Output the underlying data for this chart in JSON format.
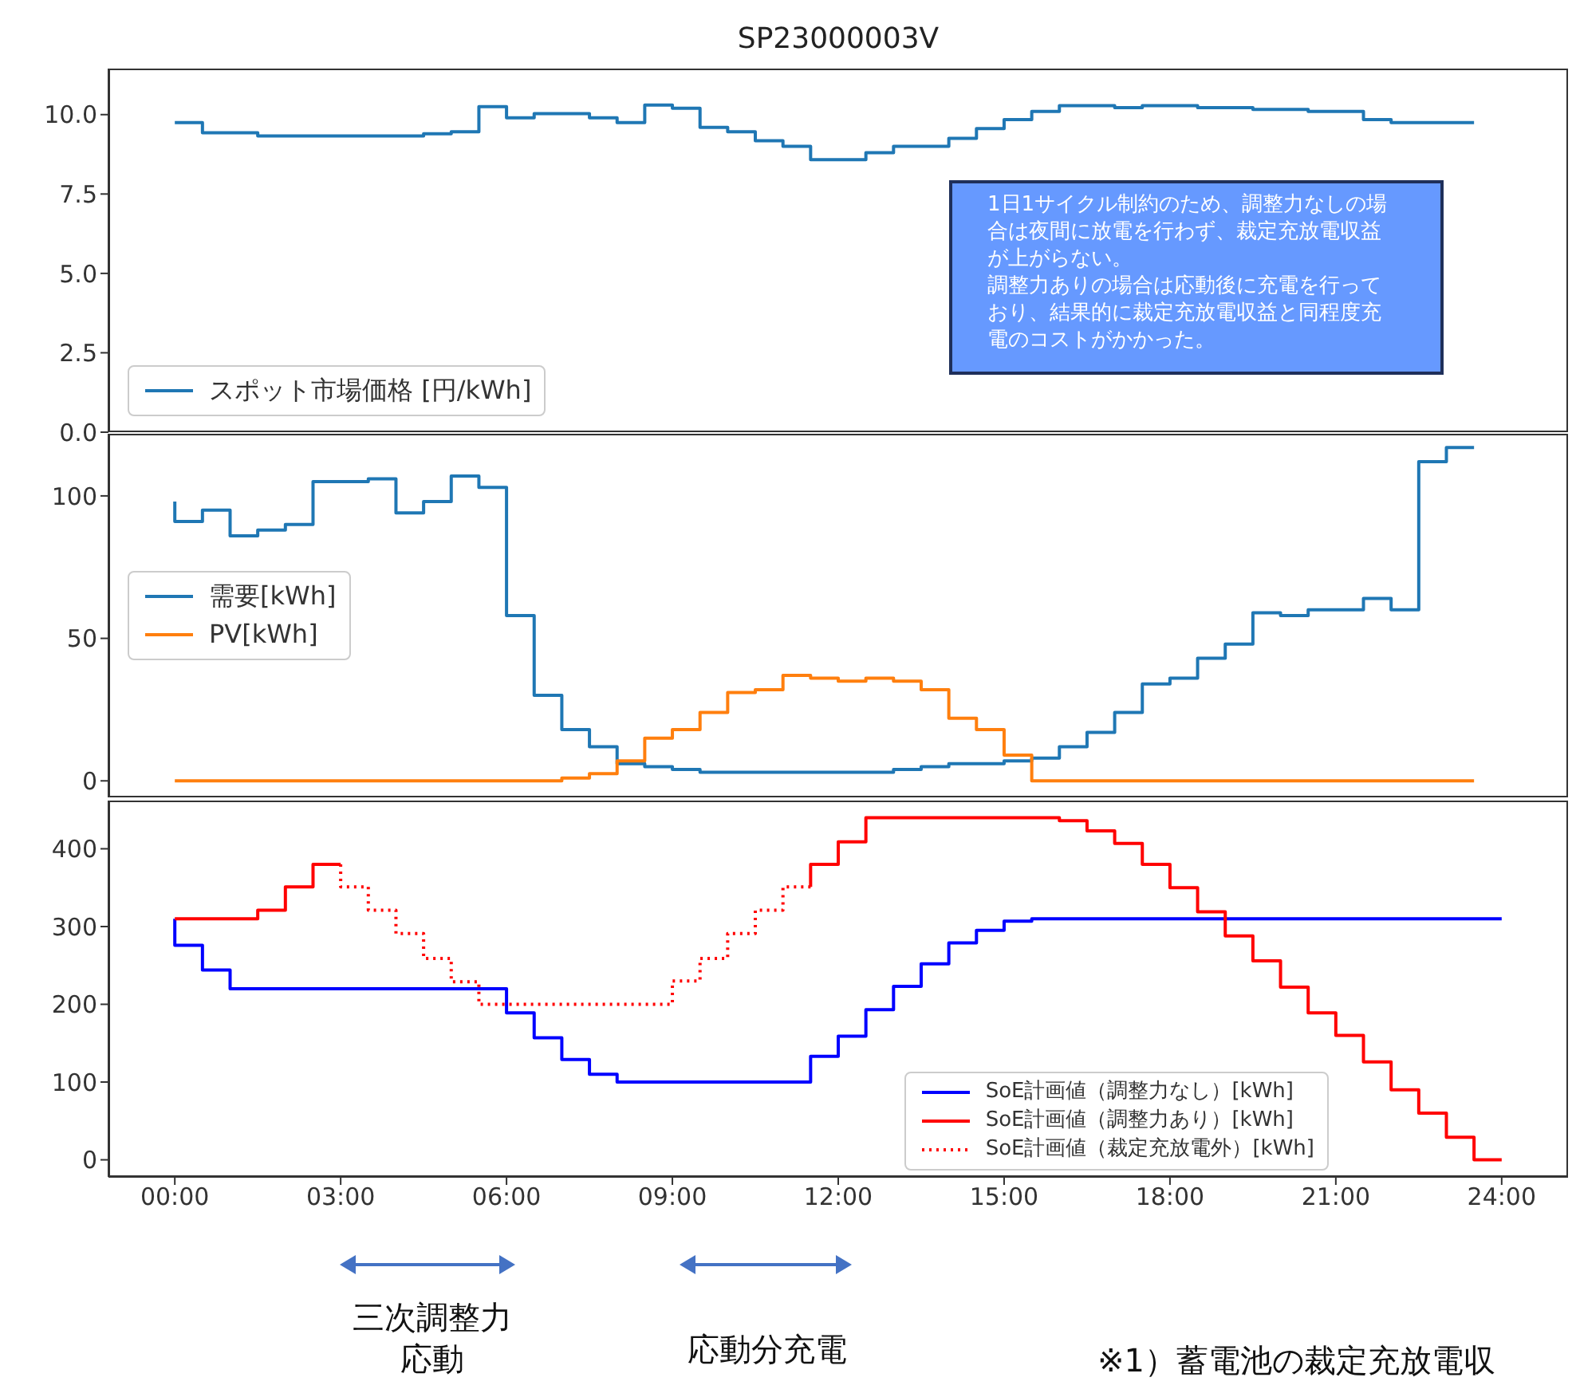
{
  "chart_data": [
    {
      "type": "step",
      "title": "SP23000003V",
      "legend": "lower left",
      "tick_labels": "y",
      "x": [
        0,
        0.5,
        1,
        1.5,
        2,
        2.5,
        3,
        3.5,
        4,
        4.5,
        5,
        5.5,
        6,
        6.5,
        7,
        7.5,
        8,
        8.5,
        9,
        9.5,
        10,
        10.5,
        11,
        11.5,
        12,
        12.5,
        13,
        13.5,
        14,
        14.5,
        15,
        15.5,
        16,
        16.5,
        17,
        17.5,
        18,
        18.5,
        19,
        19.5,
        20,
        20.5,
        21,
        21.5,
        22,
        22.5,
        23,
        23.5
      ],
      "xlim": [
        -1.2,
        25.2
      ],
      "ylim": [
        0,
        11.45
      ],
      "yticks": [
        {
          "value": 0,
          "label": "0.0"
        },
        {
          "value": 2.5,
          "label": "2.5"
        },
        {
          "value": 5,
          "label": "5.0"
        },
        {
          "value": 7.5,
          "label": "7.5"
        },
        {
          "value": 10,
          "label": "10.0"
        }
      ],
      "series": [
        {
          "name": "スポット市場価格 [円/kWh]",
          "color": "#1f77b4",
          "values": [
            9.75,
            9.75,
            9.43,
            9.43,
            9.33,
            9.33,
            9.33,
            9.33,
            9.33,
            9.33,
            9.4,
            9.46,
            10.25,
            9.9,
            10.03,
            10.03,
            9.9,
            9.75,
            10.3,
            10.2,
            9.6,
            9.46,
            9.18,
            9.0,
            8.58,
            8.58,
            8.8,
            9.0,
            9.0,
            9.25,
            9.56,
            9.84,
            10.1,
            10.28,
            10.28,
            10.22,
            10.28,
            10.28,
            10.22,
            10.22,
            10.16,
            10.16,
            10.1,
            10.1,
            9.84,
            9.75,
            9.75,
            9.75
          ]
        }
      ],
      "annotations": [
        "1日1サイクル制約のため、調整力なしの場合は夜間に放電を行わず、裁定充放電収益が上がらない。",
        "調整力ありの場合は応動後に充電を行っており、結果的に裁定充放電収益と同程度充電のコストがかかった。"
      ]
    },
    {
      "type": "step",
      "legend": "center left",
      "tick_labels": "y",
      "x": [
        0,
        0.5,
        1,
        1.5,
        2,
        2.5,
        3,
        3.5,
        4,
        4.5,
        5,
        5.5,
        6,
        6.5,
        7,
        7.5,
        8,
        8.5,
        9,
        9.5,
        10,
        10.5,
        11,
        11.5,
        12,
        12.5,
        13,
        13.5,
        14,
        14.5,
        15,
        15.5,
        16,
        16.5,
        17,
        17.5,
        18,
        18.5,
        19,
        19.5,
        20,
        20.5,
        21,
        21.5,
        22,
        22.5,
        23,
        23.5
      ],
      "xlim": [
        -1.2,
        25.2
      ],
      "ylim": [
        -5.8,
        121.8
      ],
      "yticks": [
        0,
        50,
        100
      ],
      "series": [
        {
          "name": "需要[kWh]",
          "color": "#1f77b4",
          "values": [
            98,
            91,
            95,
            86,
            88,
            90,
            105,
            105,
            106,
            94,
            98,
            107,
            103,
            58,
            30,
            18,
            12,
            6,
            5,
            4,
            3,
            3,
            3,
            3,
            3,
            3,
            3,
            4,
            5,
            6,
            6,
            7,
            8,
            12,
            17,
            24,
            34,
            36,
            43,
            48,
            59,
            58,
            60,
            60,
            64,
            60,
            112,
            117
          ]
        },
        {
          "name": "PV[kWh]",
          "color": "#ff7f0e",
          "values": [
            0,
            0,
            0,
            0,
            0,
            0,
            0,
            0,
            0,
            0,
            0,
            0,
            0,
            0,
            0,
            1,
            2.5,
            7,
            15,
            18,
            24,
            31,
            32,
            37,
            36,
            35,
            36,
            35,
            32,
            22,
            18,
            9,
            0,
            0,
            0,
            0,
            0,
            0,
            0,
            0,
            0,
            0,
            0,
            0,
            0,
            0,
            0,
            0
          ]
        }
      ]
    },
    {
      "type": "step",
      "legend": "lower right",
      "x": [
        0,
        0.5,
        1,
        1.5,
        2,
        2.5,
        3,
        3.5,
        4,
        4.5,
        5,
        5.5,
        6,
        6.5,
        7,
        7.5,
        8,
        8.5,
        9,
        9.5,
        10,
        10.5,
        11,
        11.5,
        12,
        12.5,
        13,
        13.5,
        14,
        14.5,
        15,
        15.5,
        16,
        16.5,
        17,
        17.5,
        18,
        18.5,
        19,
        19.5,
        20,
        20.5,
        21,
        21.5,
        22,
        22.5,
        23,
        23.5,
        24
      ],
      "xlim": [
        -1.2,
        25.2
      ],
      "ylim": [
        -22,
        462
      ],
      "yticks": [
        0,
        100,
        200,
        300,
        400
      ],
      "xticks": [
        {
          "value": 0,
          "label": "00:00"
        },
        {
          "value": 3,
          "label": "03:00"
        },
        {
          "value": 6,
          "label": "06:00"
        },
        {
          "value": 9,
          "label": "09:00"
        },
        {
          "value": 12,
          "label": "12:00"
        },
        {
          "value": 15,
          "label": "15:00"
        },
        {
          "value": 18,
          "label": "18:00"
        },
        {
          "value": 21,
          "label": "21:00"
        },
        {
          "value": 24,
          "label": "24:00"
        }
      ],
      "series": [
        {
          "name": "SoE計画値（調整力なし）[kWh]",
          "color": "#0000ff",
          "values": [
            310,
            276,
            244,
            220,
            220,
            220,
            220,
            220,
            220,
            220,
            220,
            220,
            220,
            189,
            157,
            129,
            110,
            100,
            100,
            100,
            100,
            100,
            100,
            100,
            133,
            159,
            193,
            223,
            252,
            279,
            295,
            307,
            310,
            310,
            310,
            310,
            310,
            310,
            310,
            310,
            310,
            310,
            310,
            310,
            310,
            310,
            310,
            310,
            310
          ]
        },
        {
          "name": "SoE計画値（調整力あり）[kWh]",
          "color": "#ff0000",
          "values": [
            310,
            310,
            310,
            310,
            321,
            351,
            380,
            null,
            null,
            null,
            null,
            null,
            null,
            null,
            null,
            null,
            null,
            null,
            null,
            null,
            null,
            null,
            null,
            351,
            380,
            409,
            440,
            440,
            440,
            440,
            440,
            440,
            440,
            436,
            423,
            407,
            380,
            350,
            319,
            288,
            256,
            222,
            189,
            160,
            126,
            90,
            60,
            29,
            0
          ]
        },
        {
          "name": "SoE計画値（裁定充放電外）[kWh]",
          "color": "#ff0000",
          "line_style": "dotted",
          "values": [
            null,
            null,
            null,
            null,
            null,
            null,
            380,
            351,
            321,
            291,
            259,
            229,
            200,
            200,
            200,
            200,
            200,
            200,
            200,
            230,
            259,
            291,
            321,
            351,
            null,
            null,
            null,
            null,
            null,
            null,
            null,
            null,
            null,
            null,
            null,
            null,
            null,
            null,
            null,
            null,
            null,
            null,
            null,
            null,
            null,
            null,
            null,
            null,
            null
          ]
        }
      ],
      "annotations": [
        "三次調整力応動",
        "応動分充電",
        "※1）蓄電池の裁定充放電収"
      ]
    }
  ]
}
